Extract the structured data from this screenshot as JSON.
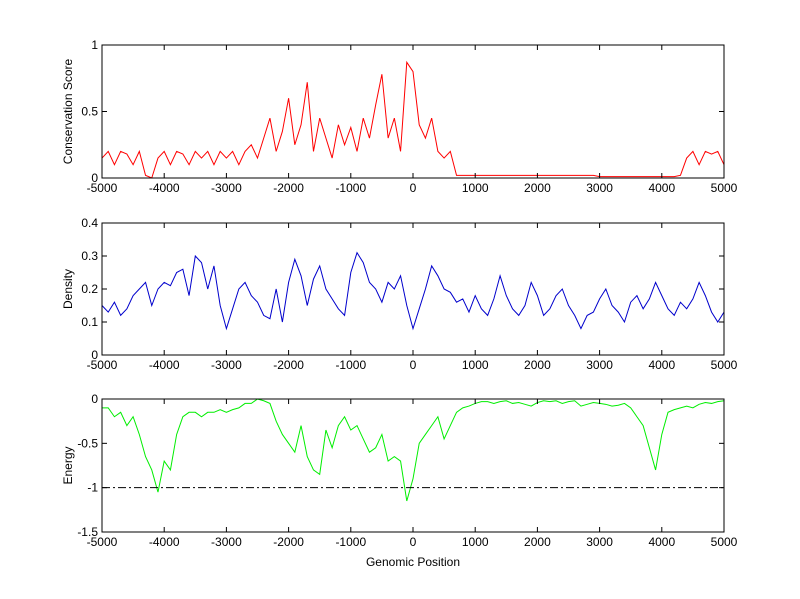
{
  "chart_data": [
    {
      "type": "line",
      "ylabel": "Conservation Score",
      "x": [
        -5000,
        -4900,
        -4800,
        -4700,
        -4600,
        -4500,
        -4400,
        -4300,
        -4200,
        -4100,
        -4000,
        -3900,
        -3800,
        -3700,
        -3600,
        -3500,
        -3400,
        -3300,
        -3200,
        -3100,
        -3000,
        -2900,
        -2800,
        -2700,
        -2600,
        -2500,
        -2400,
        -2300,
        -2200,
        -2100,
        -2000,
        -1900,
        -1800,
        -1700,
        -1600,
        -1500,
        -1400,
        -1300,
        -1200,
        -1100,
        -1000,
        -900,
        -800,
        -700,
        -600,
        -500,
        -400,
        -300,
        -200,
        -100,
        0,
        100,
        200,
        300,
        400,
        500,
        600,
        700,
        800,
        900,
        1000,
        1100,
        1200,
        1300,
        1400,
        1500,
        1600,
        1700,
        1800,
        1900,
        2000,
        2100,
        2200,
        2300,
        2400,
        2500,
        2600,
        2700,
        2800,
        2900,
        3000,
        3100,
        3200,
        3300,
        3400,
        3500,
        3600,
        3700,
        3800,
        3900,
        4000,
        4100,
        4200,
        4300,
        4400,
        4500,
        4600,
        4700,
        4800,
        4900,
        5000
      ],
      "series": [
        {
          "color": "#ff0000",
          "values": [
            0.15,
            0.2,
            0.1,
            0.2,
            0.18,
            0.1,
            0.2,
            0.02,
            0,
            0.15,
            0.2,
            0.1,
            0.2,
            0.18,
            0.1,
            0.2,
            0.15,
            0.2,
            0.1,
            0.2,
            0.15,
            0.2,
            0.1,
            0.2,
            0.25,
            0.15,
            0.3,
            0.45,
            0.2,
            0.35,
            0.6,
            0.25,
            0.4,
            0.72,
            0.2,
            0.45,
            0.3,
            0.15,
            0.4,
            0.25,
            0.38,
            0.2,
            0.45,
            0.3,
            0.55,
            0.78,
            0.3,
            0.45,
            0.2,
            0.87,
            0.8,
            0.4,
            0.3,
            0.45,
            0.2,
            0.15,
            0.2,
            0.02,
            0.02,
            0.02,
            0.02,
            0.02,
            0.02,
            0.02,
            0.02,
            0.02,
            0.02,
            0.02,
            0.02,
            0.02,
            0.02,
            0.02,
            0.02,
            0.02,
            0.02,
            0.02,
            0.02,
            0.02,
            0.02,
            0.02,
            0.01,
            0.01,
            0.01,
            0.01,
            0.01,
            0.01,
            0.01,
            0.01,
            0.01,
            0.01,
            0.01,
            0.01,
            0.01,
            0.02,
            0.15,
            0.2,
            0.1,
            0.2,
            0.18,
            0.2,
            0.1
          ]
        }
      ],
      "xlim": [
        -5000,
        5000
      ],
      "xticks": [
        -5000,
        -4000,
        -3000,
        -2000,
        -1000,
        0,
        1000,
        2000,
        3000,
        4000,
        5000
      ],
      "ylim": [
        0,
        1
      ],
      "yticks": [
        0,
        0.5,
        1
      ]
    },
    {
      "type": "line",
      "ylabel": "Density",
      "x": [
        -5000,
        -4900,
        -4800,
        -4700,
        -4600,
        -4500,
        -4400,
        -4300,
        -4200,
        -4100,
        -4000,
        -3900,
        -3800,
        -3700,
        -3600,
        -3500,
        -3400,
        -3300,
        -3200,
        -3100,
        -3000,
        -2900,
        -2800,
        -2700,
        -2600,
        -2500,
        -2400,
        -2300,
        -2200,
        -2100,
        -2000,
        -1900,
        -1800,
        -1700,
        -1600,
        -1500,
        -1400,
        -1300,
        -1200,
        -1100,
        -1000,
        -900,
        -800,
        -700,
        -600,
        -500,
        -400,
        -300,
        -200,
        -100,
        0,
        100,
        200,
        300,
        400,
        500,
        600,
        700,
        800,
        900,
        1000,
        1100,
        1200,
        1300,
        1400,
        1500,
        1600,
        1700,
        1800,
        1900,
        2000,
        2100,
        2200,
        2300,
        2400,
        2500,
        2600,
        2700,
        2800,
        2900,
        3000,
        3100,
        3200,
        3300,
        3400,
        3500,
        3600,
        3700,
        3800,
        3900,
        4000,
        4100,
        4200,
        4300,
        4400,
        4500,
        4600,
        4700,
        4800,
        4900,
        5000
      ],
      "series": [
        {
          "color": "#0000cc",
          "values": [
            0.15,
            0.13,
            0.16,
            0.12,
            0.14,
            0.18,
            0.2,
            0.22,
            0.15,
            0.2,
            0.22,
            0.21,
            0.25,
            0.26,
            0.18,
            0.3,
            0.28,
            0.2,
            0.27,
            0.15,
            0.08,
            0.14,
            0.2,
            0.22,
            0.18,
            0.16,
            0.12,
            0.11,
            0.2,
            0.1,
            0.22,
            0.29,
            0.24,
            0.15,
            0.23,
            0.27,
            0.2,
            0.17,
            0.14,
            0.12,
            0.25,
            0.31,
            0.28,
            0.22,
            0.2,
            0.16,
            0.22,
            0.2,
            0.24,
            0.15,
            0.08,
            0.14,
            0.2,
            0.27,
            0.24,
            0.2,
            0.19,
            0.16,
            0.17,
            0.13,
            0.18,
            0.14,
            0.12,
            0.17,
            0.24,
            0.18,
            0.14,
            0.12,
            0.15,
            0.22,
            0.18,
            0.12,
            0.14,
            0.18,
            0.2,
            0.15,
            0.12,
            0.08,
            0.12,
            0.13,
            0.17,
            0.2,
            0.15,
            0.13,
            0.1,
            0.16,
            0.18,
            0.14,
            0.17,
            0.22,
            0.18,
            0.14,
            0.12,
            0.16,
            0.14,
            0.17,
            0.22,
            0.18,
            0.13,
            0.1,
            0.13
          ]
        }
      ],
      "xlim": [
        -5000,
        5000
      ],
      "xticks": [
        -5000,
        -4000,
        -3000,
        -2000,
        -1000,
        0,
        1000,
        2000,
        3000,
        4000,
        5000
      ],
      "ylim": [
        0,
        0.4
      ],
      "yticks": [
        0,
        0.1,
        0.2,
        0.3,
        0.4
      ]
    },
    {
      "type": "line",
      "ylabel": "Energy",
      "xlabel": "Genomic Position",
      "x": [
        -5000,
        -4900,
        -4800,
        -4700,
        -4600,
        -4500,
        -4400,
        -4300,
        -4200,
        -4100,
        -4000,
        -3900,
        -3800,
        -3700,
        -3600,
        -3500,
        -3400,
        -3300,
        -3200,
        -3100,
        -3000,
        -2900,
        -2800,
        -2700,
        -2600,
        -2500,
        -2400,
        -2300,
        -2200,
        -2100,
        -2000,
        -1900,
        -1800,
        -1700,
        -1600,
        -1500,
        -1400,
        -1300,
        -1200,
        -1100,
        -1000,
        -900,
        -800,
        -700,
        -600,
        -500,
        -400,
        -300,
        -200,
        -100,
        0,
        100,
        200,
        300,
        400,
        500,
        600,
        700,
        800,
        900,
        1000,
        1100,
        1200,
        1300,
        1400,
        1500,
        1600,
        1700,
        1800,
        1900,
        2000,
        2100,
        2200,
        2300,
        2400,
        2500,
        2600,
        2700,
        2800,
        2900,
        3000,
        3100,
        3200,
        3300,
        3400,
        3500,
        3600,
        3700,
        3800,
        3900,
        4000,
        4100,
        4200,
        4300,
        4400,
        4500,
        4600,
        4700,
        4800,
        4900,
        5000
      ],
      "series": [
        {
          "color": "#00ee00",
          "values": [
            -0.1,
            -0.1,
            -0.2,
            -0.15,
            -0.3,
            -0.2,
            -0.4,
            -0.65,
            -0.8,
            -1.05,
            -0.7,
            -0.8,
            -0.4,
            -0.2,
            -0.15,
            -0.15,
            -0.2,
            -0.15,
            -0.15,
            -0.12,
            -0.15,
            -0.12,
            -0.1,
            -0.05,
            -0.05,
            0,
            -0.02,
            -0.05,
            -0.25,
            -0.4,
            -0.5,
            -0.6,
            -0.3,
            -0.65,
            -0.8,
            -0.85,
            -0.35,
            -0.55,
            -0.3,
            -0.2,
            -0.35,
            -0.3,
            -0.45,
            -0.6,
            -0.55,
            -0.4,
            -0.7,
            -0.65,
            -0.7,
            -1.15,
            -0.9,
            -0.5,
            -0.4,
            -0.3,
            -0.2,
            -0.45,
            -0.3,
            -0.15,
            -0.1,
            -0.08,
            -0.05,
            -0.03,
            -0.03,
            -0.05,
            -0.03,
            -0.02,
            -0.05,
            -0.04,
            -0.06,
            -0.08,
            -0.04,
            -0.02,
            -0.03,
            -0.02,
            -0.05,
            -0.03,
            -0.02,
            -0.08,
            -0.06,
            -0.04,
            -0.05,
            -0.06,
            -0.08,
            -0.07,
            -0.05,
            -0.1,
            -0.2,
            -0.3,
            -0.55,
            -0.8,
            -0.4,
            -0.15,
            -0.12,
            -0.1,
            -0.08,
            -0.1,
            -0.06,
            -0.04,
            -0.05,
            -0.03,
            -0.02
          ]
        }
      ],
      "hline": -1,
      "xlim": [
        -5000,
        5000
      ],
      "xticks": [
        -5000,
        -4000,
        -3000,
        -2000,
        -1000,
        0,
        1000,
        2000,
        3000,
        4000,
        5000
      ],
      "ylim": [
        -1.5,
        0
      ],
      "yticks": [
        -1.5,
        -1,
        -0.5,
        0
      ]
    }
  ]
}
